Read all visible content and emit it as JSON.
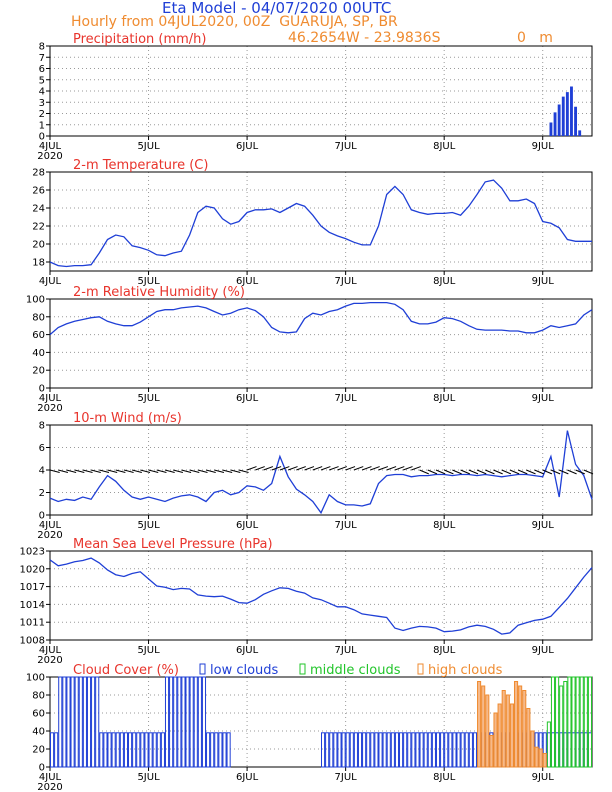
{
  "header": {
    "title": "Eta Model - 04/07/2020 00UTC",
    "hourly": "Hourly from 04JUL2020, 00Z  GUARUJA, SP, BR",
    "coords": "46.2654W - 23.9836S",
    "elevation": "0   m"
  },
  "colors": {
    "blue": "#1f3fd6",
    "red": "#e8342c",
    "orange": "#ef8b30",
    "green": "#22c52a",
    "grid": "#9a9a9a"
  },
  "chart_data": [
    {
      "id": "precip",
      "type": "bar",
      "title": "Precipitation (mm/h)",
      "ylim": [
        0,
        8
      ],
      "yticks": [
        0,
        1,
        2,
        3,
        4,
        5,
        6,
        7,
        8
      ],
      "day_labels": [
        "4JUL",
        "5JUL",
        "6JUL",
        "7JUL",
        "8JUL",
        "9JUL"
      ],
      "year_label": "2020",
      "x_unit": "hours since 04JUL 00Z",
      "xlim": [
        0,
        132
      ],
      "x": [
        122,
        123,
        124,
        125,
        126,
        127,
        128,
        129
      ],
      "values": [
        1.2,
        2.1,
        2.8,
        3.5,
        3.9,
        4.4,
        2.6,
        0.5
      ]
    },
    {
      "id": "temp",
      "type": "line",
      "title": "2-m Temperature (C)",
      "ylim": [
        17,
        28
      ],
      "yticks": [
        18,
        20,
        22,
        24,
        26,
        28
      ],
      "day_labels": [
        "4JUL",
        "5JUL",
        "6JUL",
        "7JUL",
        "8JUL",
        "9JUL"
      ],
      "year_label": "",
      "xlim": [
        0,
        132
      ],
      "x": [
        0,
        2,
        4,
        6,
        8,
        10,
        12,
        14,
        16,
        18,
        20,
        22,
        24,
        26,
        28,
        30,
        32,
        34,
        36,
        38,
        40,
        42,
        44,
        46,
        48,
        50,
        52,
        54,
        56,
        58,
        60,
        62,
        64,
        66,
        68,
        70,
        72,
        74,
        76,
        78,
        80,
        82,
        84,
        86,
        88,
        90,
        92,
        94,
        96,
        98,
        100,
        102,
        104,
        106,
        108,
        110,
        112,
        114,
        116,
        118,
        120,
        122,
        124,
        126,
        128,
        130,
        132
      ],
      "values": [
        18.0,
        17.6,
        17.5,
        17.6,
        17.6,
        17.7,
        19.0,
        20.5,
        21.0,
        20.8,
        19.8,
        19.6,
        19.3,
        18.8,
        18.7,
        19.0,
        19.2,
        21.0,
        23.5,
        24.2,
        24.0,
        22.8,
        22.2,
        22.5,
        23.5,
        23.8,
        23.8,
        23.9,
        23.5,
        24.0,
        24.5,
        24.2,
        23.2,
        22.0,
        21.3,
        20.9,
        20.6,
        20.2,
        19.9,
        19.9,
        22.0,
        25.5,
        26.4,
        25.5,
        23.8,
        23.5,
        23.3,
        23.4,
        23.4,
        23.5,
        23.2,
        24.2,
        25.5,
        26.9,
        27.1,
        26.2,
        24.8,
        24.8,
        25.0,
        24.5,
        22.5,
        22.3,
        21.8,
        20.5,
        20.3,
        20.3,
        20.3
      ]
    },
    {
      "id": "rh",
      "type": "line",
      "title": "2-m Relative Humidity (%)",
      "ylim": [
        0,
        100
      ],
      "yticks": [
        0,
        20,
        40,
        60,
        80,
        100
      ],
      "day_labels": [
        "4JUL",
        "5JUL",
        "6JUL",
        "7JUL",
        "8JUL",
        "9JUL"
      ],
      "year_label": "2020",
      "xlim": [
        0,
        132
      ],
      "x": [
        0,
        2,
        4,
        6,
        8,
        10,
        12,
        14,
        16,
        18,
        20,
        22,
        24,
        26,
        28,
        30,
        32,
        34,
        36,
        38,
        40,
        42,
        44,
        46,
        48,
        50,
        52,
        54,
        56,
        58,
        60,
        62,
        64,
        66,
        68,
        70,
        72,
        74,
        76,
        78,
        80,
        82,
        84,
        86,
        88,
        90,
        92,
        94,
        96,
        98,
        100,
        102,
        104,
        106,
        108,
        110,
        112,
        114,
        116,
        118,
        120,
        122,
        124,
        126,
        128,
        130,
        132
      ],
      "values": [
        60,
        68,
        72,
        75,
        77,
        79,
        80,
        75,
        72,
        70,
        70,
        74,
        80,
        86,
        88,
        88,
        90,
        91,
        92,
        90,
        86,
        82,
        84,
        88,
        90,
        87,
        80,
        68,
        63,
        62,
        63,
        78,
        84,
        82,
        86,
        88,
        92,
        95,
        95,
        96,
        96,
        96,
        94,
        88,
        75,
        72,
        72,
        74,
        79,
        78,
        75,
        70,
        66,
        65,
        65,
        65,
        64,
        64,
        62,
        62,
        65,
        70,
        68,
        70,
        72,
        82,
        88
      ]
    },
    {
      "id": "wind",
      "type": "line",
      "title": "10-m Wind (m/s)",
      "ylim": [
        0,
        8
      ],
      "yticks": [
        0,
        2,
        4,
        6,
        8
      ],
      "day_labels": [
        "4JUL",
        "5JUL",
        "6JUL",
        "7JUL",
        "8JUL",
        "9JUL"
      ],
      "year_label": "2020",
      "xlim": [
        0,
        132
      ],
      "x": [
        0,
        2,
        4,
        6,
        8,
        10,
        12,
        14,
        16,
        18,
        20,
        22,
        24,
        26,
        28,
        30,
        32,
        34,
        36,
        38,
        40,
        42,
        44,
        46,
        48,
        50,
        52,
        54,
        56,
        58,
        60,
        62,
        64,
        66,
        68,
        70,
        72,
        74,
        76,
        78,
        80,
        82,
        84,
        86,
        88,
        90,
        92,
        94,
        96,
        98,
        100,
        102,
        104,
        106,
        108,
        110,
        112,
        114,
        116,
        118,
        120,
        122,
        124,
        126,
        128,
        130,
        132
      ],
      "values": [
        1.5,
        1.2,
        1.4,
        1.3,
        1.6,
        1.4,
        2.5,
        3.5,
        3.0,
        2.2,
        1.6,
        1.4,
        1.6,
        1.4,
        1.2,
        1.5,
        1.7,
        1.8,
        1.6,
        1.2,
        2.0,
        2.2,
        1.8,
        2.0,
        2.6,
        2.5,
        2.2,
        2.8,
        5.2,
        3.4,
        2.3,
        1.8,
        1.2,
        0.2,
        1.8,
        1.2,
        0.9,
        0.9,
        0.8,
        1.0,
        2.8,
        3.5,
        3.6,
        3.6,
        3.4,
        3.5,
        3.5,
        3.6,
        3.6,
        3.5,
        3.6,
        3.6,
        3.5,
        3.6,
        3.5,
        3.4,
        3.5,
        3.6,
        3.6,
        3.5,
        3.4,
        5.2,
        1.6,
        7.5,
        4.5,
        3.5,
        1.4
      ]
    },
    {
      "id": "mslp",
      "type": "line",
      "title": "Mean Sea Level Pressure (hPa)",
      "ylim": [
        1008,
        1023
      ],
      "yticks": [
        1008,
        1011,
        1014,
        1017,
        1020,
        1023
      ],
      "day_labels": [
        "4JUL",
        "5JUL",
        "6JUL",
        "7JUL",
        "8JUL",
        "9JUL"
      ],
      "year_label": "2020",
      "xlim": [
        0,
        132
      ],
      "x": [
        0,
        2,
        4,
        6,
        8,
        10,
        12,
        14,
        16,
        18,
        20,
        22,
        24,
        26,
        28,
        30,
        32,
        34,
        36,
        38,
        40,
        42,
        44,
        46,
        48,
        50,
        52,
        54,
        56,
        58,
        60,
        62,
        64,
        66,
        68,
        70,
        72,
        74,
        76,
        78,
        80,
        82,
        84,
        86,
        88,
        90,
        92,
        94,
        96,
        98,
        100,
        102,
        104,
        106,
        108,
        110,
        112,
        114,
        116,
        118,
        120,
        122,
        124,
        126,
        128,
        130,
        132
      ],
      "values": [
        1021.5,
        1020.5,
        1020.8,
        1021.2,
        1021.4,
        1021.8,
        1021.0,
        1019.8,
        1019.0,
        1018.7,
        1019.2,
        1019.5,
        1018.3,
        1017.1,
        1016.9,
        1016.5,
        1016.7,
        1016.6,
        1015.6,
        1015.4,
        1015.3,
        1015.4,
        1014.9,
        1014.3,
        1014.2,
        1014.8,
        1015.7,
        1016.3,
        1016.8,
        1016.7,
        1016.2,
        1015.9,
        1015.1,
        1014.8,
        1014.2,
        1013.6,
        1013.6,
        1013.1,
        1012.4,
        1012.2,
        1012.0,
        1011.8,
        1010.0,
        1009.6,
        1010.0,
        1010.3,
        1010.2,
        1010.0,
        1009.4,
        1009.5,
        1009.7,
        1010.2,
        1010.5,
        1010.3,
        1009.8,
        1009.0,
        1009.2,
        1010.5,
        1010.9,
        1011.3,
        1011.5,
        1012.0,
        1013.5,
        1015.0,
        1016.8,
        1018.6,
        1020.2
      ]
    },
    {
      "id": "cloud",
      "type": "bar",
      "title": "Cloud Cover (%)",
      "legend": [
        "low clouds",
        "middle clouds",
        "high clouds"
      ],
      "ylim": [
        0,
        100
      ],
      "yticks": [
        0,
        20,
        40,
        60,
        80,
        100
      ],
      "day_labels": [
        "4JUL",
        "5JUL",
        "6JUL",
        "7JUL",
        "8JUL",
        "9JUL"
      ],
      "year_label": "2020",
      "xlim": [
        0,
        132
      ],
      "series": [
        {
          "name": "low clouds",
          "x": [
            0,
            1,
            2,
            3,
            4,
            5,
            6,
            7,
            8,
            9,
            10,
            11,
            12,
            13,
            14,
            15,
            16,
            17,
            18,
            19,
            20,
            21,
            22,
            23,
            24,
            25,
            26,
            27,
            28,
            29,
            30,
            31,
            32,
            33,
            34,
            35,
            36,
            37,
            38,
            39,
            40,
            41,
            42,
            43,
            66,
            67,
            68,
            69,
            70,
            71,
            72,
            73,
            74,
            75,
            76,
            77,
            78,
            79,
            80,
            81,
            82,
            83,
            84,
            85,
            86,
            87,
            88,
            89,
            90,
            91,
            92,
            93,
            94,
            95,
            96,
            97,
            98,
            99,
            100,
            101,
            102,
            103,
            104,
            105,
            106,
            107,
            108,
            109,
            110,
            111,
            112,
            113,
            114,
            115,
            116,
            117,
            118,
            119,
            120,
            121,
            122,
            123,
            124,
            125,
            126,
            127,
            128,
            129,
            130,
            131
          ],
          "values": [
            38,
            38,
            100,
            100,
            100,
            100,
            100,
            100,
            100,
            100,
            100,
            100,
            38,
            38,
            38,
            38,
            38,
            38,
            38,
            38,
            38,
            38,
            38,
            38,
            38,
            38,
            38,
            38,
            100,
            100,
            100,
            100,
            100,
            100,
            100,
            100,
            100,
            100,
            38,
            38,
            38,
            38,
            38,
            38,
            38,
            38,
            38,
            38,
            38,
            38,
            38,
            38,
            38,
            38,
            38,
            38,
            38,
            38,
            38,
            38,
            38,
            38,
            38,
            38,
            38,
            38,
            38,
            38,
            38,
            38,
            38,
            38,
            38,
            38,
            38,
            38,
            38,
            38,
            38,
            38,
            38,
            38,
            38,
            38,
            38,
            38,
            38,
            38,
            38,
            38,
            38,
            38,
            38,
            38,
            38,
            38,
            38,
            38,
            38,
            38,
            38,
            38,
            38,
            38,
            38,
            38,
            38,
            38,
            38,
            38
          ]
        },
        {
          "name": "middle clouds",
          "x": [
            121,
            122,
            123,
            124,
            125,
            126,
            127,
            128,
            129,
            130,
            131
          ],
          "values": [
            50,
            100,
            100,
            90,
            95,
            100,
            100,
            100,
            100,
            100,
            100
          ]
        },
        {
          "name": "high clouds",
          "x": [
            104,
            105,
            106,
            107,
            108,
            109,
            110,
            111,
            112,
            113,
            114,
            115,
            116,
            117,
            118,
            119,
            120
          ],
          "values": [
            95,
            90,
            80,
            35,
            60,
            70,
            85,
            80,
            70,
            95,
            90,
            85,
            65,
            40,
            22,
            20,
            15
          ]
        }
      ]
    }
  ]
}
